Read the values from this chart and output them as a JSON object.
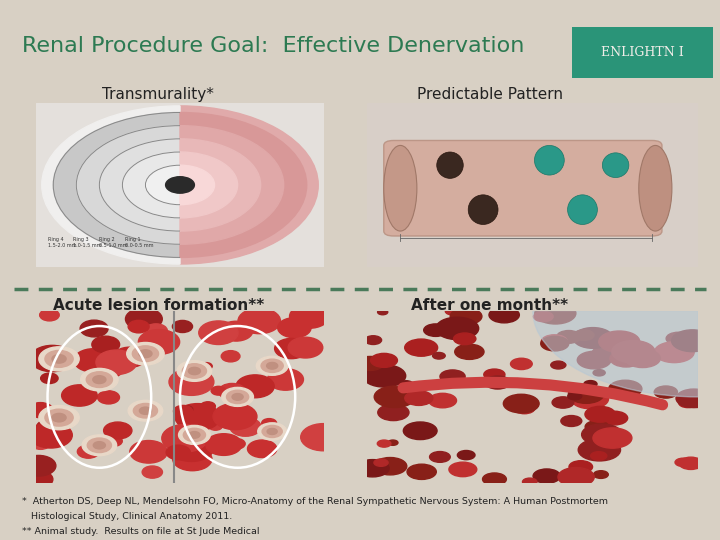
{
  "background_color": "#d8d0c4",
  "title": "Renal Procedure Goal:  Effective Denervation",
  "title_color": "#2d7a52",
  "title_fontsize": 16,
  "logo_text": "ENLIGHTN I",
  "logo_bg": "#2a9478",
  "logo_text_color": "#f0ede8",
  "label_transmurality": "Transmurality*",
  "label_predictable": "Predictable Pattern",
  "label_acute": "Acute lesion formation**",
  "label_aftermonth": "After one month**",
  "label_color": "#222222",
  "label_fontsize": 11,
  "footnote1": "*  Atherton DS, Deep NL, Mendelsohn FO, Micro-Anatomy of the Renal Sympathetic Nervous System: A Human Postmortem",
  "footnote2": "   Histological Study, Clinical Anatomy 2011.",
  "footnote3": "** Animal study.  Results on file at St Jude Medical",
  "footnote_fontsize": 6.8,
  "footnote_color": "#222222",
  "dash_color": "#4a7a5a",
  "dash_linewidth": 2.5,
  "tl_img_color": "#d0d0d0",
  "tr_img_color": "#c8b8a8",
  "bl_img_color": "#b83030",
  "br_img_color": "#9a2828"
}
